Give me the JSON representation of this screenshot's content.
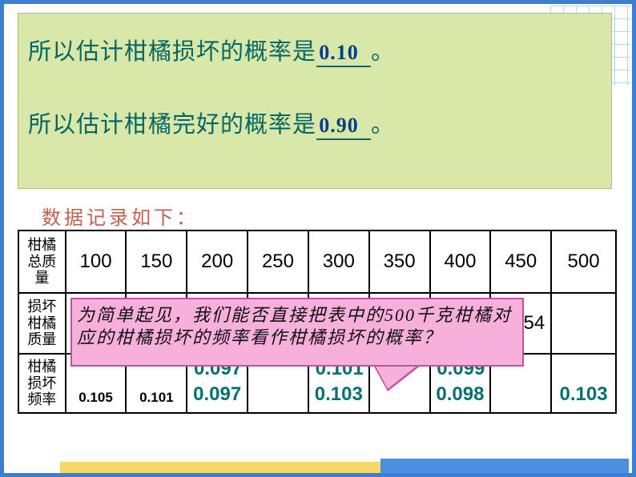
{
  "answers": {
    "line1_prefix": "所以估计柑橘损坏的概率是",
    "line1_value": "0.10",
    "line1_suffix": "。",
    "line2_prefix": "所以估计柑橘完好的概率是",
    "line2_value": "0.90",
    "line2_suffix": "。"
  },
  "truncated": "数据记录如下：",
  "table": {
    "row_labels": [
      "柑橘总质量",
      "损坏柑橘质量",
      "柑橘损坏频率"
    ],
    "totals": [
      "100",
      "150",
      "200",
      "250",
      "300",
      "350",
      "400",
      "450",
      "500"
    ],
    "damaged_visible": {
      "c7": "",
      "c8": "51.54"
    },
    "freq": [
      "0.105",
      "0.101",
      "0.097",
      "0.097",
      "0.103",
      "0.101",
      "0.098",
      "0.099",
      "0.103"
    ]
  },
  "speech": "为简单起见，我们能否直接把表中的500千克柑橘对应的柑橘损坏的频率看作柑橘损坏的概率？",
  "colors": {
    "frame": "#3a7fd4",
    "green_box_bg": "#d9e8a8",
    "teal_text": "#006666",
    "value_blue": "#003e8a",
    "pink_box": "#f7b0dc",
    "freq_teal": "#007070"
  }
}
